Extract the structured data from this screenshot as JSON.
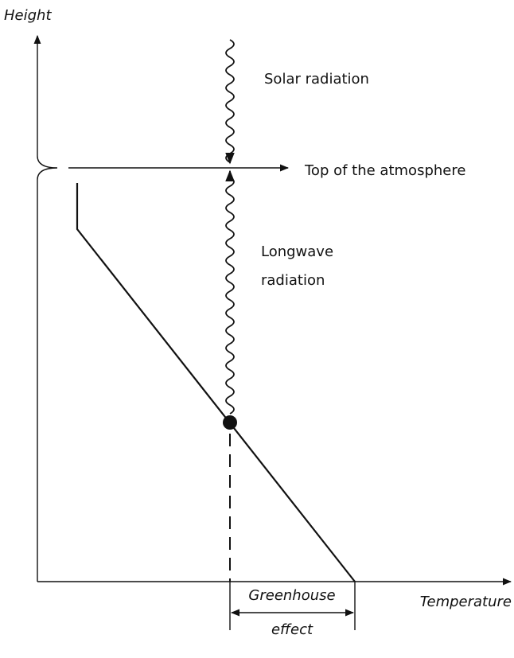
{
  "labels": {
    "y_axis": "Height",
    "x_axis": "Temperature",
    "solar_radiation": "Solar radiation",
    "top_of_atmosphere": "Top of the atmosphere",
    "longwave_radiation": [
      "Longwave",
      "radiation"
    ],
    "greenhouse_effect": [
      "Greenhouse",
      "effect"
    ]
  }
}
